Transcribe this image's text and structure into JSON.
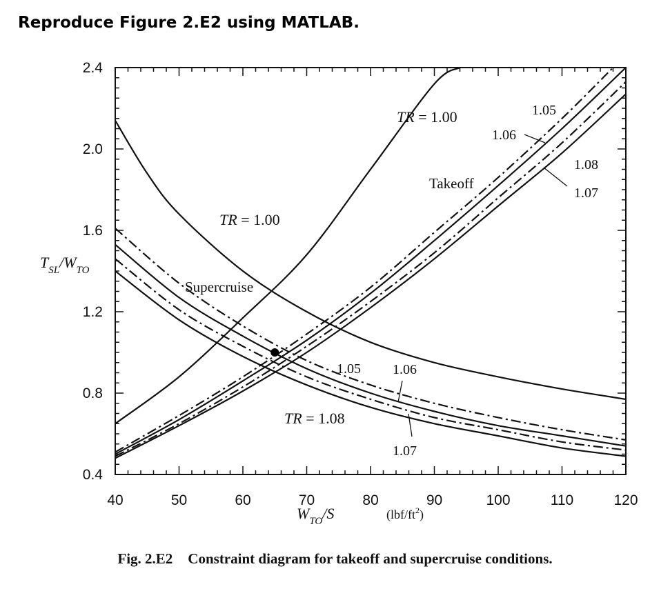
{
  "heading": "Reproduce Figure 2.E2 using MATLAB.",
  "caption": {
    "number": "Fig. 2.E2",
    "text": "Constraint diagram for takeoff and supercruise conditions."
  },
  "chart_data": {
    "type": "line",
    "xlim": [
      40,
      120
    ],
    "ylim": [
      0.4,
      2.4
    ],
    "xticks": [
      40,
      50,
      60,
      70,
      80,
      90,
      100,
      110,
      120
    ],
    "yticks": [
      0.4,
      0.8,
      1.2,
      1.6,
      2.0,
      2.4
    ],
    "ytick_labels": [
      "0.4",
      "0.8",
      "1.2",
      "1.6",
      "2.0",
      "2.4"
    ],
    "xlabel": {
      "main": "W",
      "sub": "TO",
      "tail": "/S",
      "units": "(lbf/ft",
      "units_sup": "2",
      "units_end": ")"
    },
    "ylabel": {
      "main": "T",
      "sub1": "SL",
      "mid": "/W",
      "sub2": "TO"
    },
    "grid": false,
    "series": [
      {
        "group": "Takeoff",
        "tr": "1.00",
        "style": "solid",
        "x": [
          40,
          50,
          60,
          70,
          80,
          90,
          94
        ],
        "y": [
          0.65,
          0.88,
          1.17,
          1.48,
          1.9,
          2.32,
          2.4
        ]
      },
      {
        "group": "Takeoff",
        "tr": "1.05",
        "style": "dashdot",
        "x": [
          40,
          50,
          60,
          70,
          80,
          90,
          100,
          110,
          118
        ],
        "y": [
          0.51,
          0.69,
          0.88,
          1.09,
          1.32,
          1.59,
          1.86,
          2.15,
          2.4
        ]
      },
      {
        "group": "Takeoff",
        "tr": "1.06",
        "style": "solid",
        "x": [
          40,
          50,
          60,
          70,
          80,
          90,
          100,
          110,
          120
        ],
        "y": [
          0.5,
          0.67,
          0.86,
          1.06,
          1.29,
          1.55,
          1.82,
          2.1,
          2.4
        ]
      },
      {
        "group": "Takeoff",
        "tr": "1.07",
        "style": "dashdot",
        "x": [
          40,
          50,
          60,
          70,
          80,
          90,
          100,
          110,
          120
        ],
        "y": [
          0.49,
          0.65,
          0.83,
          1.03,
          1.25,
          1.49,
          1.76,
          2.03,
          2.33
        ]
      },
      {
        "group": "Takeoff",
        "tr": "1.08",
        "style": "solid",
        "x": [
          40,
          50,
          60,
          70,
          80,
          90,
          100,
          110,
          120
        ],
        "y": [
          0.48,
          0.64,
          0.81,
          1.0,
          1.22,
          1.46,
          1.72,
          1.98,
          2.27
        ]
      },
      {
        "group": "Supercruise",
        "tr": "1.00",
        "style": "solid",
        "x": [
          40,
          45,
          50,
          60,
          70,
          80,
          90,
          100,
          110,
          120
        ],
        "y": [
          2.14,
          1.88,
          1.68,
          1.4,
          1.2,
          1.05,
          0.95,
          0.88,
          0.82,
          0.77
        ]
      },
      {
        "group": "Supercruise",
        "tr": "1.05",
        "style": "dashdot",
        "x": [
          40,
          50,
          60,
          70,
          80,
          90,
          100,
          110,
          120
        ],
        "y": [
          1.61,
          1.34,
          1.13,
          0.96,
          0.84,
          0.75,
          0.68,
          0.62,
          0.57
        ]
      },
      {
        "group": "Supercruise",
        "tr": "1.06",
        "style": "solid",
        "x": [
          40,
          50,
          60,
          70,
          80,
          90,
          100,
          110,
          120
        ],
        "y": [
          1.53,
          1.27,
          1.08,
          0.92,
          0.8,
          0.71,
          0.64,
          0.59,
          0.54
        ]
      },
      {
        "group": "Supercruise",
        "tr": "1.07",
        "style": "dashdot",
        "x": [
          40,
          50,
          60,
          70,
          80,
          90,
          100,
          110,
          120
        ],
        "y": [
          1.46,
          1.21,
          1.03,
          0.88,
          0.77,
          0.68,
          0.62,
          0.56,
          0.52
        ]
      },
      {
        "group": "Supercruise",
        "tr": "1.08",
        "style": "solid",
        "x": [
          40,
          50,
          60,
          70,
          80,
          90,
          100,
          110,
          120
        ],
        "y": [
          1.4,
          1.16,
          0.98,
          0.84,
          0.73,
          0.65,
          0.59,
          0.53,
          0.49
        ]
      }
    ],
    "design_point": {
      "x": 65,
      "y": 1.0
    },
    "annotations": {
      "tr_prefix": "TR",
      "equals": " = ",
      "takeoff_tr": "1.00",
      "takeoff_label": "Takeoff",
      "supercruise_tr": "1.00",
      "supercruise_label": "Supercruise",
      "takeoff_105": "1.05",
      "takeoff_106": "1.06",
      "takeoff_108": "1.08",
      "takeoff_107": "1.07",
      "sc_105": "1.05",
      "sc_106": "1.06",
      "sc_tr_108": "1.08",
      "sc_107": "1.07"
    }
  }
}
